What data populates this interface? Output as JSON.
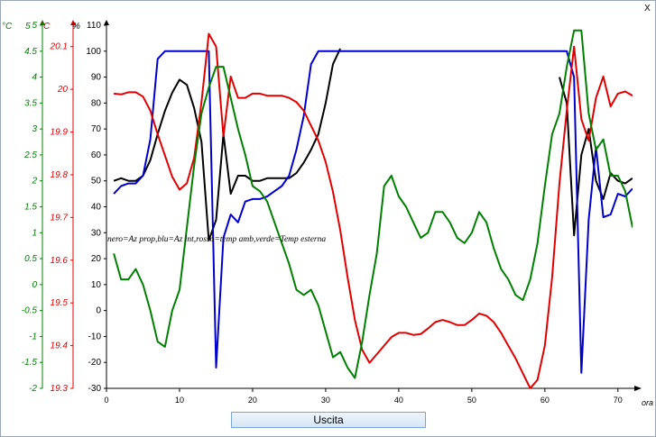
{
  "window": {
    "close_glyph": "x"
  },
  "button": {
    "exit_label": "Uscita"
  },
  "chart_data": {
    "type": "line",
    "xlabel": "ora",
    "xlim": [
      0,
      72
    ],
    "x_ticks": [
      0,
      10,
      20,
      30,
      40,
      50,
      60,
      70
    ],
    "legend_text": "nero=Az prop,blu=Az int,rosso=temp amb,verde=Temp esterna",
    "axes": [
      {
        "id": "main",
        "unit": "%",
        "color": "#000000",
        "ylim": [
          -30,
          110
        ],
        "ticks": [
          -30,
          -20,
          -10,
          0,
          10,
          20,
          30,
          40,
          50,
          60,
          70,
          80,
          90,
          100,
          110
        ]
      },
      {
        "id": "green",
        "unit": "°C",
        "color": "#008000",
        "ylim": [
          -2,
          5
        ],
        "ticks": [
          -2,
          -1.5,
          -1,
          -0.5,
          0,
          0.5,
          1,
          1.5,
          2,
          2.5,
          3,
          3.5,
          4,
          4.5,
          5
        ]
      },
      {
        "id": "red",
        "unit": "°C",
        "color": "#dd0000",
        "ylim": [
          19.3,
          20.15
        ],
        "ticks": [
          19.3,
          19.4,
          19.5,
          19.6,
          19.7,
          19.8,
          19.9,
          20,
          20.1
        ]
      }
    ],
    "series": [
      {
        "name": "nero=Az prop",
        "color": "#000000",
        "axis": "main",
        "points": [
          [
            1,
            50
          ],
          [
            2,
            51
          ],
          [
            3,
            50
          ],
          [
            4,
            50
          ],
          [
            5,
            52
          ],
          [
            6,
            58
          ],
          [
            7,
            68
          ],
          [
            8,
            77
          ],
          [
            9,
            84
          ],
          [
            10,
            89
          ],
          [
            11,
            87
          ],
          [
            12,
            78
          ],
          [
            13,
            65
          ],
          [
            14,
            27
          ],
          [
            15,
            35
          ],
          [
            16,
            68
          ],
          [
            17,
            45
          ],
          [
            18,
            52
          ],
          [
            19,
            52
          ],
          [
            20,
            50
          ],
          [
            21,
            50
          ],
          [
            22,
            51
          ],
          [
            23,
            51
          ],
          [
            24,
            51
          ],
          [
            25,
            51
          ],
          [
            26,
            53
          ],
          [
            27,
            57
          ],
          [
            28,
            62
          ],
          [
            29,
            68
          ],
          [
            30,
            80
          ],
          [
            31,
            95
          ],
          [
            32,
            101
          ]
        ]
      },
      {
        "name": "nero=Az prop (ripresa)",
        "color": "#000000",
        "axis": "main",
        "points": [
          [
            62,
            90
          ],
          [
            63,
            80
          ],
          [
            64,
            29
          ],
          [
            65,
            60
          ],
          [
            66,
            70
          ],
          [
            67,
            50
          ],
          [
            68,
            43
          ],
          [
            69,
            53
          ],
          [
            70,
            50
          ],
          [
            71,
            49
          ],
          [
            72,
            51
          ]
        ]
      },
      {
        "name": "blu=Az int",
        "color": "#0000cc",
        "axis": "main",
        "points": [
          [
            1,
            45
          ],
          [
            2,
            48
          ],
          [
            3,
            49
          ],
          [
            4,
            49
          ],
          [
            5,
            52
          ],
          [
            6,
            66
          ],
          [
            7,
            97
          ],
          [
            8,
            100
          ],
          [
            10,
            100
          ],
          [
            12,
            100
          ],
          [
            14,
            100
          ],
          [
            15,
            -22
          ],
          [
            16,
            28
          ],
          [
            17,
            37
          ],
          [
            18,
            34
          ],
          [
            19,
            42
          ],
          [
            20,
            43
          ],
          [
            21,
            43
          ],
          [
            22,
            44
          ],
          [
            23,
            46
          ],
          [
            24,
            48
          ],
          [
            25,
            52
          ],
          [
            26,
            62
          ],
          [
            27,
            75
          ],
          [
            28,
            95
          ],
          [
            29,
            100
          ],
          [
            40,
            100
          ],
          [
            50,
            100
          ],
          [
            60,
            100
          ],
          [
            63,
            100
          ],
          [
            64,
            90
          ],
          [
            65,
            -24
          ],
          [
            66,
            35
          ],
          [
            67,
            63
          ],
          [
            68,
            36
          ],
          [
            69,
            37
          ],
          [
            70,
            45
          ],
          [
            71,
            44
          ],
          [
            72,
            47
          ]
        ]
      },
      {
        "name": "rosso=temp amb",
        "color": "#e00000",
        "axis": "red",
        "points": [
          [
            1,
            19.99
          ],
          [
            2,
            19.988
          ],
          [
            3,
            19.993
          ],
          [
            4,
            19.993
          ],
          [
            5,
            19.983
          ],
          [
            6,
            19.95
          ],
          [
            7,
            19.895
          ],
          [
            8,
            19.845
          ],
          [
            9,
            19.795
          ],
          [
            10,
            19.765
          ],
          [
            11,
            19.78
          ],
          [
            12,
            19.84
          ],
          [
            13,
            19.97
          ],
          [
            14,
            20.13
          ],
          [
            15,
            20.1
          ],
          [
            16,
            19.89
          ],
          [
            17,
            20.03
          ],
          [
            18,
            19.98
          ],
          [
            19,
            19.98
          ],
          [
            20,
            19.99
          ],
          [
            21,
            19.99
          ],
          [
            22,
            19.985
          ],
          [
            23,
            19.985
          ],
          [
            24,
            19.985
          ],
          [
            25,
            19.98
          ],
          [
            26,
            19.97
          ],
          [
            27,
            19.95
          ],
          [
            28,
            19.915
          ],
          [
            29,
            19.88
          ],
          [
            30,
            19.83
          ],
          [
            31,
            19.76
          ],
          [
            32,
            19.67
          ],
          [
            33,
            19.56
          ],
          [
            34,
            19.46
          ],
          [
            35,
            19.39
          ],
          [
            36,
            19.36
          ],
          [
            37,
            19.38
          ],
          [
            38,
            19.4
          ],
          [
            39,
            19.42
          ],
          [
            40,
            19.43
          ],
          [
            41,
            19.43
          ],
          [
            42,
            19.425
          ],
          [
            43,
            19.427
          ],
          [
            44,
            19.44
          ],
          [
            45,
            19.455
          ],
          [
            46,
            19.46
          ],
          [
            47,
            19.455
          ],
          [
            48,
            19.448
          ],
          [
            49,
            19.448
          ],
          [
            50,
            19.46
          ],
          [
            51,
            19.475
          ],
          [
            52,
            19.47
          ],
          [
            53,
            19.455
          ],
          [
            54,
            19.43
          ],
          [
            55,
            19.4
          ],
          [
            56,
            19.37
          ],
          [
            57,
            19.335
          ],
          [
            58,
            19.3
          ],
          [
            59,
            19.32
          ],
          [
            60,
            19.4
          ],
          [
            61,
            19.56
          ],
          [
            62,
            19.78
          ],
          [
            63,
            19.95
          ],
          [
            64,
            20.1
          ],
          [
            65,
            19.93
          ],
          [
            66,
            19.88
          ],
          [
            67,
            19.98
          ],
          [
            68,
            20.03
          ],
          [
            69,
            19.96
          ],
          [
            70,
            19.99
          ],
          [
            71,
            19.995
          ],
          [
            72,
            19.985
          ]
        ]
      },
      {
        "name": "verde=Temp esterna",
        "color": "#008000",
        "axis": "green",
        "points": [
          [
            1,
            0.6
          ],
          [
            2,
            0.1
          ],
          [
            3,
            0.1
          ],
          [
            4,
            0.3
          ],
          [
            5,
            0
          ],
          [
            6,
            -0.5
          ],
          [
            7,
            -1.1
          ],
          [
            8,
            -1.2
          ],
          [
            9,
            -0.5
          ],
          [
            10,
            -0.1
          ],
          [
            11,
            1.1
          ],
          [
            12,
            2.3
          ],
          [
            13,
            3.3
          ],
          [
            14,
            3.8
          ],
          [
            15,
            4.2
          ],
          [
            16,
            4.2
          ],
          [
            17,
            3.6
          ],
          [
            18,
            3.0
          ],
          [
            19,
            2.5
          ],
          [
            20,
            1.9
          ],
          [
            21,
            1.8
          ],
          [
            22,
            1.6
          ],
          [
            23,
            1.2
          ],
          [
            24,
            0.8
          ],
          [
            25,
            0.4
          ],
          [
            26,
            -0.1
          ],
          [
            27,
            -0.2
          ],
          [
            28,
            -0.1
          ],
          [
            29,
            -0.4
          ],
          [
            30,
            -0.9
          ],
          [
            31,
            -1.4
          ],
          [
            32,
            -1.3
          ],
          [
            33,
            -1.6
          ],
          [
            34,
            -1.8
          ],
          [
            35,
            -1.1
          ],
          [
            36,
            -0.2
          ],
          [
            37,
            0.6
          ],
          [
            38,
            1.9
          ],
          [
            39,
            2.1
          ],
          [
            40,
            1.7
          ],
          [
            41,
            1.5
          ],
          [
            42,
            1.2
          ],
          [
            43,
            0.9
          ],
          [
            44,
            1.0
          ],
          [
            45,
            1.4
          ],
          [
            46,
            1.4
          ],
          [
            47,
            1.2
          ],
          [
            48,
            0.9
          ],
          [
            49,
            0.8
          ],
          [
            50,
            1.0
          ],
          [
            51,
            1.4
          ],
          [
            52,
            1.2
          ],
          [
            53,
            0.7
          ],
          [
            54,
            0.3
          ],
          [
            55,
            0.1
          ],
          [
            56,
            -0.2
          ],
          [
            57,
            -0.3
          ],
          [
            58,
            0.1
          ],
          [
            59,
            0.8
          ],
          [
            60,
            1.9
          ],
          [
            61,
            2.9
          ],
          [
            62,
            3.3
          ],
          [
            63,
            4.2
          ],
          [
            64,
            4.9
          ],
          [
            65,
            4.9
          ],
          [
            66,
            3.3
          ],
          [
            67,
            2.6
          ],
          [
            68,
            2.8
          ],
          [
            69,
            2.1
          ],
          [
            70,
            2.1
          ],
          [
            71,
            1.8
          ],
          [
            72,
            1.1
          ]
        ]
      }
    ]
  }
}
